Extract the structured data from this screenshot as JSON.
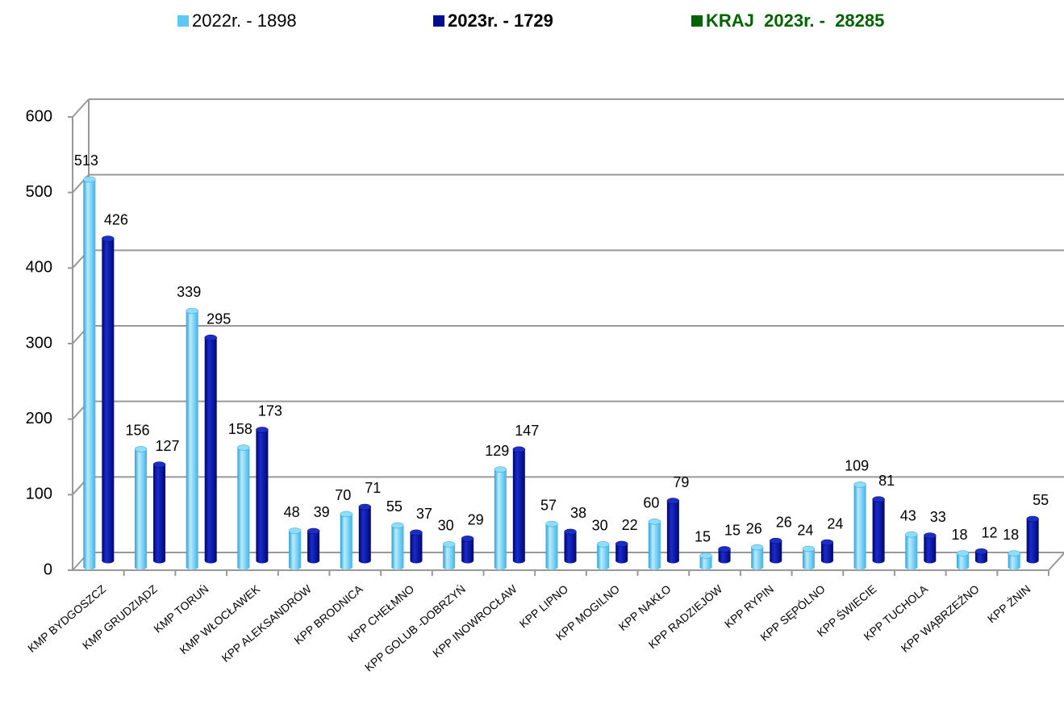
{
  "chart_data": {
    "type": "bar3d",
    "categories": [
      "KMP BYDGOSZCZ",
      "KMP GRUDZIĄDZ",
      "KMP TORUŃ",
      "KMP WŁOCŁAWEK",
      "KPP  ALEKSANDRÓW",
      "KPP BRODNICA",
      "KPP  CHEŁMNO",
      "KPP GOLUB -DOBRZYŃ",
      "KPP  INOWROCŁAW",
      "KPP  LIPNO",
      "KPP  MOGILNO",
      "KPP  NAKŁO",
      "KPP  RADZIEJÓW",
      "KPP  RYPIN",
      "KPP  SĘPÓLNO",
      "KPP  ŚWIECIE",
      "KPP  TUCHOLA",
      "KPP  WĄBRZEŹNO",
      "KPP  ŻNIN"
    ],
    "series": [
      {
        "name": "2022r. - 1898",
        "color": "#5bc8f5",
        "values": [
          513,
          156,
          339,
          158,
          48,
          70,
          55,
          30,
          129,
          57,
          30,
          60,
          15,
          26,
          24,
          109,
          43,
          18,
          18
        ]
      },
      {
        "name": "2023r. - 1729",
        "color": "#000d8c",
        "values": [
          426,
          127,
          295,
          173,
          39,
          71,
          37,
          29,
          147,
          38,
          22,
          79,
          15,
          26,
          24,
          81,
          33,
          12,
          55
        ]
      }
    ],
    "legend_note": {
      "text": "KRAJ  2023r. -  28285",
      "color": "#006400"
    },
    "ylim": [
      0,
      600
    ],
    "yticks": [
      0,
      100,
      200,
      300,
      400,
      500,
      600
    ],
    "grid": true
  }
}
